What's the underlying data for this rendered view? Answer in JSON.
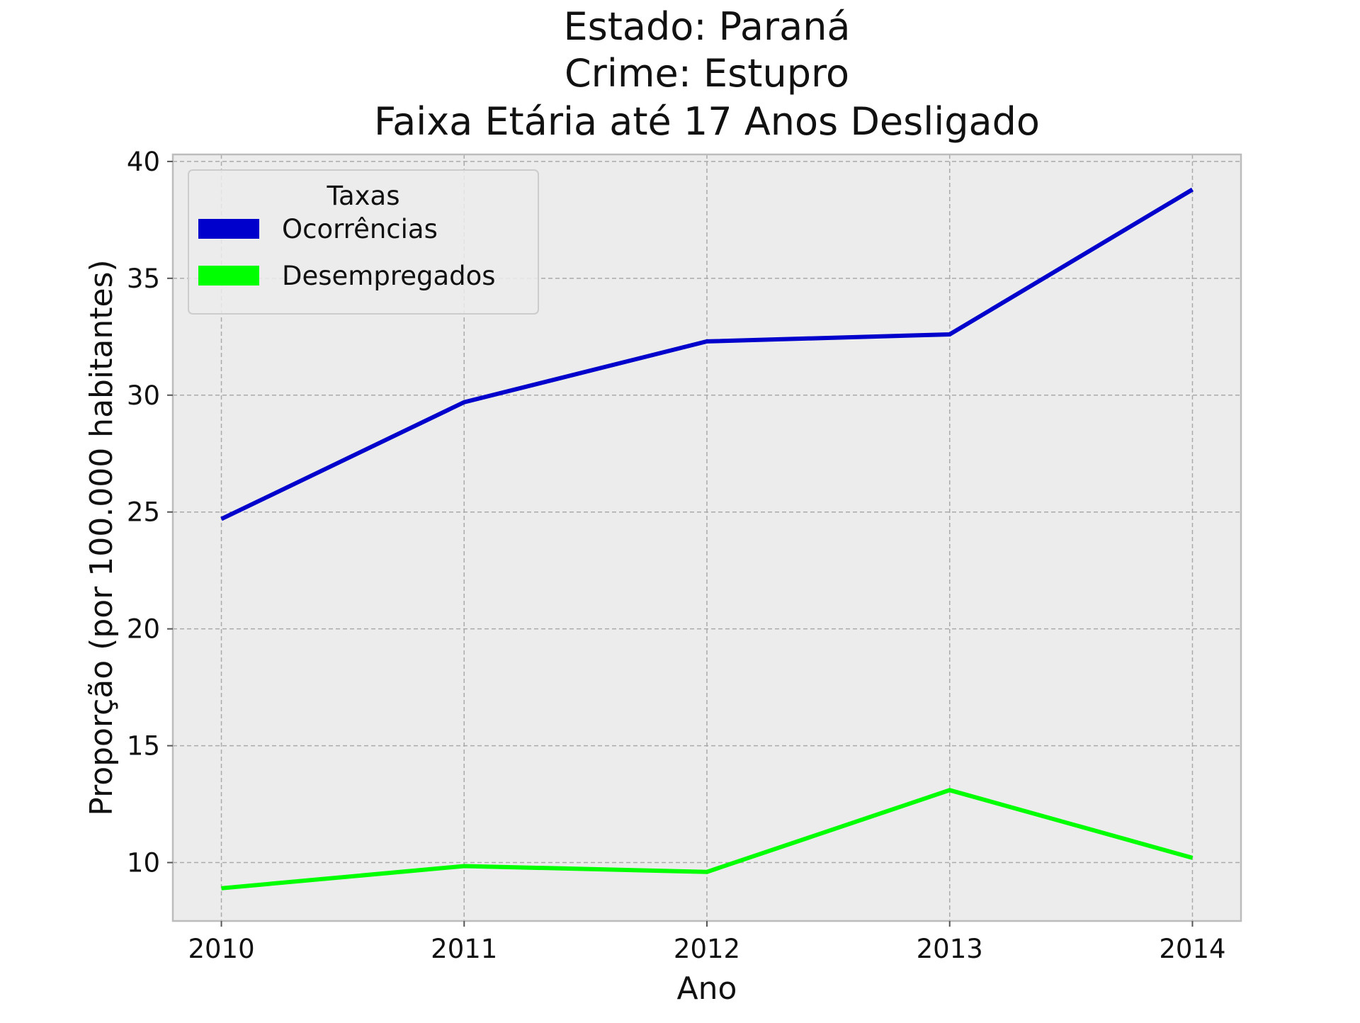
{
  "chart_data": {
    "type": "line",
    "title_lines": [
      "Estado: Paraná",
      "Crime: Estupro",
      "Faixa Etária até 17 Anos   Desligado"
    ],
    "xlabel": "Ano",
    "ylabel": "Proporção (por 100.000 habitantes)",
    "x": [
      2010,
      2011,
      2012,
      2013,
      2014
    ],
    "x_tick_labels": [
      "2010",
      "2011",
      "2012",
      "2013",
      "2014"
    ],
    "y_ticks": [
      10,
      15,
      20,
      25,
      30,
      35,
      40
    ],
    "y_tick_labels": [
      "10",
      "15",
      "20",
      "25",
      "30",
      "35",
      "40"
    ],
    "xlim": [
      2009.8,
      2014.2
    ],
    "ylim": [
      7.5,
      40.3
    ],
    "grid": true,
    "legend": {
      "title": "Taxas",
      "placement": "top-left"
    },
    "series": [
      {
        "name": "Ocorrências",
        "color": "#0000cc",
        "values": [
          24.7,
          29.7,
          32.3,
          32.6,
          38.8
        ]
      },
      {
        "name": "Desempregados",
        "color": "#00ff00",
        "values": [
          8.9,
          9.85,
          9.6,
          13.1,
          10.2
        ]
      }
    ]
  }
}
